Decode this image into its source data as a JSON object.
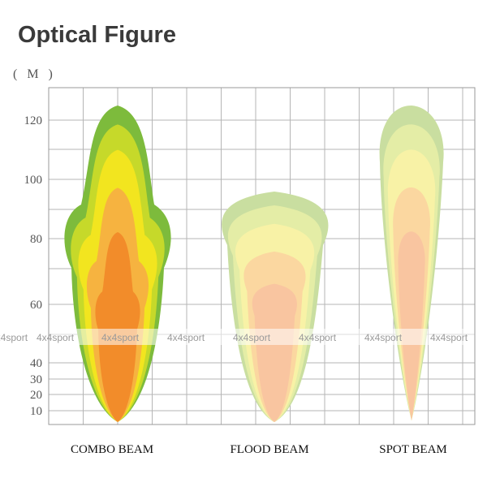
{
  "title": "Optical Figure",
  "unit": "( M )",
  "y_axis_labels": [
    120,
    100,
    80,
    60,
    40,
    30,
    20,
    10
  ],
  "watermark": "4x4sport",
  "beams": [
    {
      "label": "COMBO BEAM"
    },
    {
      "label": "FLOOD BEAM"
    },
    {
      "label": "SPOT BEAM"
    }
  ]
}
